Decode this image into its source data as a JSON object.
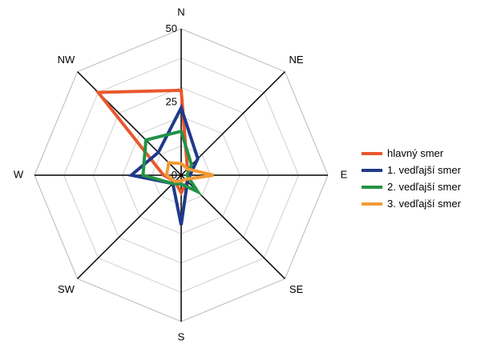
{
  "chart_data": {
    "type": "radar",
    "categories": [
      "N",
      "NE",
      "E",
      "SE",
      "S",
      "SW",
      "W",
      "NW"
    ],
    "radial_ticks": [
      "0",
      "25",
      "50"
    ],
    "rlim": [
      0,
      50
    ],
    "grid": true,
    "legend_position": "right",
    "series": [
      {
        "name": "hlavný smer",
        "color": "#E8582E",
        "values": [
          29,
          3,
          3,
          3,
          6,
          3,
          6,
          40
        ]
      },
      {
        "name": "1. vedľajší smer",
        "color": "#1F3A8A",
        "values": [
          23,
          8,
          3,
          3,
          17,
          4,
          17,
          11
        ]
      },
      {
        "name": "2. vedľajší smer",
        "color": "#229246",
        "values": [
          15,
          5,
          2,
          8,
          3,
          4,
          13,
          17
        ]
      },
      {
        "name": "3. vedľajší smer",
        "color": "#F29A38",
        "values": [
          4,
          3,
          11,
          2,
          2,
          3,
          5,
          6
        ]
      }
    ]
  }
}
